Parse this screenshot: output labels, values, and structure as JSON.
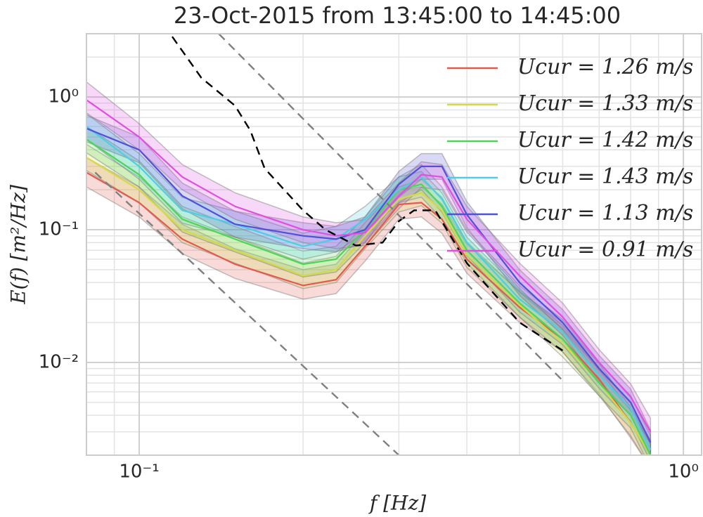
{
  "chart_data": {
    "type": "line",
    "title": "23-Oct-2015 from 13:45:00 to 14:45:00",
    "xlabel": "f [Hz]",
    "ylabel": "E(f) [m²/Hz]",
    "xscale": "log",
    "yscale": "log",
    "grid": true,
    "legend": "upper right",
    "xlim": [
      0.08,
      1.08
    ],
    "ylim": [
      0.002,
      3
    ],
    "xticks": [
      {
        "value": 0.1,
        "label": "10⁻¹"
      },
      {
        "value": 1,
        "label": "10⁰"
      }
    ],
    "yticks": [
      {
        "value": 0.01,
        "label": "10⁻²"
      },
      {
        "value": 0.1,
        "label": "10⁻¹"
      },
      {
        "value": 1,
        "label": "10⁰"
      }
    ],
    "xminorticks": [
      0.08,
      0.09,
      0.2,
      0.3,
      0.4,
      0.5,
      0.6,
      0.7,
      0.8,
      0.9
    ],
    "yminorticks": [
      0.002,
      0.003,
      0.004,
      0.005,
      0.006,
      0.007,
      0.008,
      0.009,
      0.02,
      0.03,
      0.04,
      0.05,
      0.06,
      0.07,
      0.08,
      0.09,
      0.2,
      0.3,
      0.4,
      0.5,
      0.6,
      0.7,
      0.8,
      0.9,
      2,
      3
    ],
    "x": [
      0.08,
      0.1,
      0.12,
      0.15,
      0.2,
      0.23,
      0.26,
      0.3,
      0.33,
      0.36,
      0.4,
      0.5,
      0.6,
      0.7,
      0.8,
      0.87
    ],
    "series": [
      {
        "name": "Ucur = 1.26 m/s",
        "color": "#e05a4f",
        "values": [
          0.27,
          0.16,
          0.085,
          0.055,
          0.038,
          0.042,
          0.075,
          0.155,
          0.16,
          0.12,
          0.06,
          0.026,
          0.015,
          0.0075,
          0.0035,
          0.002
        ],
        "lower": [
          0.21,
          0.125,
          0.066,
          0.043,
          0.03,
          0.033,
          0.058,
          0.12,
          0.125,
          0.094,
          0.047,
          0.02,
          0.012,
          0.0058,
          0.0027,
          0.0016
        ],
        "upper": [
          0.35,
          0.21,
          0.11,
          0.072,
          0.05,
          0.055,
          0.098,
          0.2,
          0.21,
          0.156,
          0.078,
          0.034,
          0.02,
          0.0098,
          0.0046,
          0.0026
        ]
      },
      {
        "name": "Ucur = 1.33 m/s",
        "color": "#d4d94a",
        "values": [
          0.35,
          0.2,
          0.1,
          0.07,
          0.045,
          0.05,
          0.09,
          0.17,
          0.19,
          0.14,
          0.065,
          0.027,
          0.014,
          0.007,
          0.0035,
          0.002
        ],
        "lower": [
          0.28,
          0.16,
          0.08,
          0.056,
          0.036,
          0.04,
          0.072,
          0.136,
          0.152,
          0.112,
          0.052,
          0.022,
          0.011,
          0.0056,
          0.0028,
          0.0016
        ],
        "upper": [
          0.44,
          0.25,
          0.125,
          0.088,
          0.056,
          0.063,
          0.113,
          0.21,
          0.24,
          0.175,
          0.081,
          0.034,
          0.018,
          0.0088,
          0.0044,
          0.0025
        ]
      },
      {
        "name": "Ucur = 1.42 m/s",
        "color": "#4fd45a",
        "values": [
          0.48,
          0.26,
          0.12,
          0.085,
          0.055,
          0.06,
          0.1,
          0.2,
          0.22,
          0.15,
          0.07,
          0.028,
          0.015,
          0.007,
          0.004,
          0.002
        ],
        "lower": [
          0.38,
          0.21,
          0.096,
          0.068,
          0.044,
          0.048,
          0.08,
          0.16,
          0.176,
          0.12,
          0.056,
          0.022,
          0.012,
          0.0056,
          0.0032,
          0.0016
        ],
        "upper": [
          0.6,
          0.33,
          0.15,
          0.106,
          0.069,
          0.075,
          0.125,
          0.25,
          0.275,
          0.19,
          0.088,
          0.035,
          0.019,
          0.0088,
          0.005,
          0.0025
        ]
      },
      {
        "name": "Ucur = 1.43 m/s",
        "color": "#4fcde0",
        "values": [
          0.6,
          0.3,
          0.14,
          0.11,
          0.075,
          0.085,
          0.12,
          0.2,
          0.25,
          0.17,
          0.08,
          0.03,
          0.017,
          0.008,
          0.0045,
          0.0022
        ],
        "lower": [
          0.48,
          0.24,
          0.112,
          0.088,
          0.06,
          0.068,
          0.096,
          0.16,
          0.2,
          0.136,
          0.064,
          0.024,
          0.0136,
          0.0064,
          0.0036,
          0.0018
        ],
        "upper": [
          0.75,
          0.375,
          0.175,
          0.138,
          0.094,
          0.106,
          0.15,
          0.25,
          0.31,
          0.21,
          0.1,
          0.038,
          0.021,
          0.01,
          0.0056,
          0.0028
        ]
      },
      {
        "name": "Ucur = 1.13 m/s",
        "color": "#5050d8",
        "values": [
          0.58,
          0.4,
          0.18,
          0.11,
          0.09,
          0.085,
          0.1,
          0.22,
          0.3,
          0.3,
          0.13,
          0.04,
          0.02,
          0.009,
          0.005,
          0.0025
        ],
        "lower": [
          0.46,
          0.32,
          0.144,
          0.088,
          0.072,
          0.068,
          0.08,
          0.176,
          0.24,
          0.24,
          0.104,
          0.032,
          0.016,
          0.0072,
          0.004,
          0.002
        ],
        "upper": [
          0.73,
          0.5,
          0.225,
          0.138,
          0.113,
          0.106,
          0.125,
          0.275,
          0.375,
          0.375,
          0.163,
          0.05,
          0.025,
          0.0113,
          0.0063,
          0.0031
        ]
      },
      {
        "name": "Ucur = 0.91 m/s",
        "color": "#e04fe0",
        "values": [
          0.95,
          0.5,
          0.25,
          0.15,
          0.1,
          0.09,
          0.095,
          0.18,
          0.26,
          0.25,
          0.12,
          0.045,
          0.022,
          0.01,
          0.0055,
          0.003
        ],
        "lower": [
          0.76,
          0.4,
          0.2,
          0.12,
          0.08,
          0.072,
          0.076,
          0.144,
          0.208,
          0.2,
          0.096,
          0.036,
          0.0176,
          0.008,
          0.0044,
          0.0024
        ],
        "upper": [
          1.3,
          0.63,
          0.31,
          0.19,
          0.125,
          0.113,
          0.119,
          0.225,
          0.325,
          0.31,
          0.15,
          0.056,
          0.028,
          0.0125,
          0.0069,
          0.0038
        ]
      }
    ],
    "reference_lines": [
      {
        "color": "#000000",
        "dashed": true,
        "x": [
          0.115,
          0.13,
          0.15,
          0.16,
          0.17,
          0.2,
          0.22,
          0.25,
          0.28,
          0.3,
          0.32,
          0.35,
          0.4,
          0.5,
          0.6
        ],
        "values": [
          2.85,
          1.4,
          0.86,
          0.56,
          0.29,
          0.14,
          0.1,
          0.076,
          0.08,
          0.116,
          0.14,
          0.14,
          0.056,
          0.02,
          0.0123
        ]
      },
      {
        "color": "#808080",
        "dashed": true,
        "x": [
          0.14,
          0.6
        ],
        "values": [
          3.0,
          0.0073
        ]
      },
      {
        "color": "#808080",
        "dashed": true,
        "x": [
          0.083,
          0.3
        ],
        "values": [
          0.27,
          0.002
        ]
      }
    ]
  }
}
